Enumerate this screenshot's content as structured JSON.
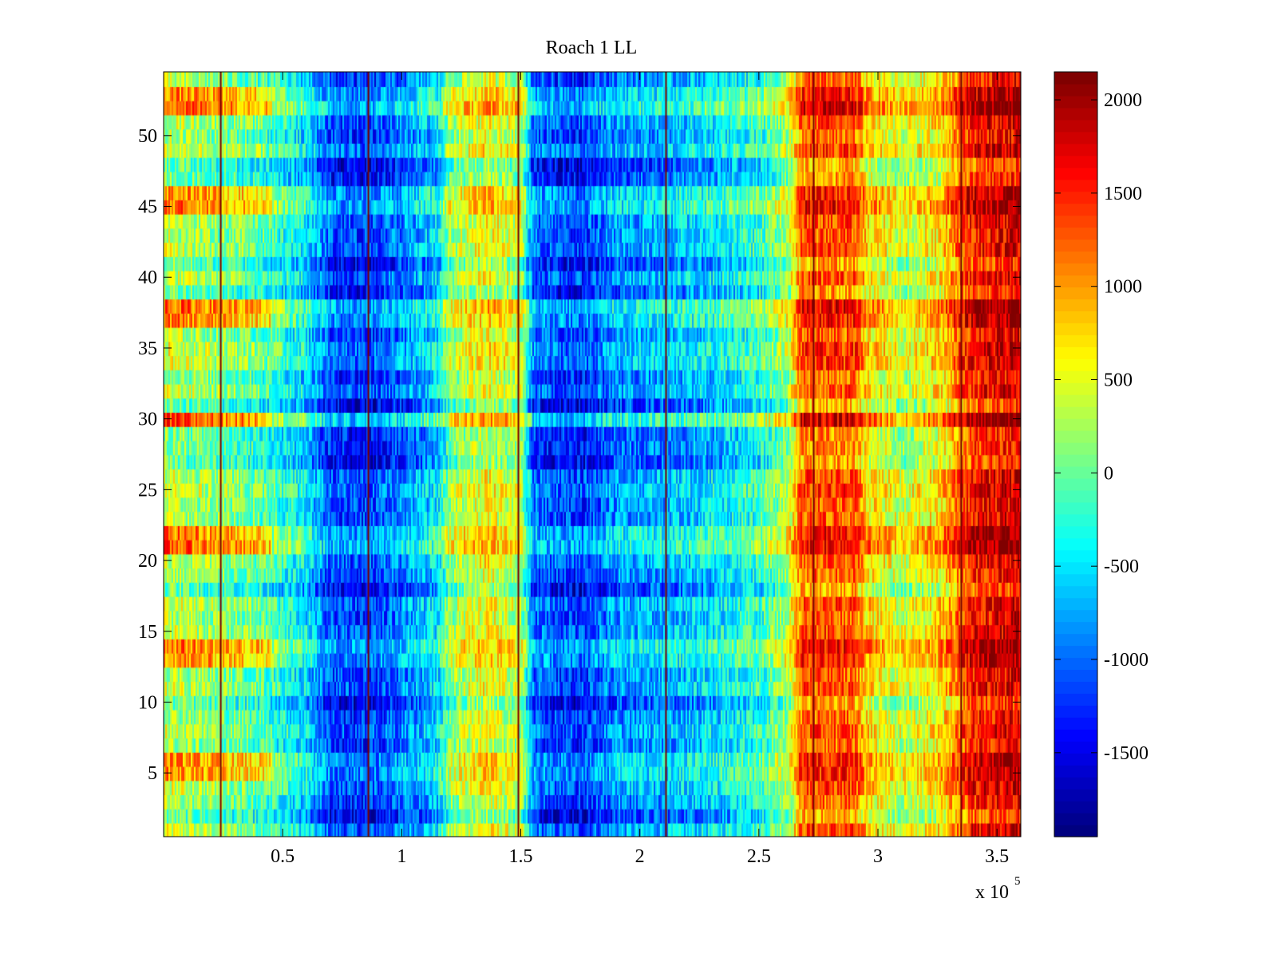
{
  "chart_data": {
    "type": "heatmap",
    "title": "Roach 1 LL",
    "xlabel": "",
    "ylabel": "",
    "x_exponent_label": "x 10",
    "x_exponent": "5",
    "xlim": [
      0,
      3.6
    ],
    "ylim": [
      0.5,
      54.5
    ],
    "x_ticks": [
      0.5,
      1,
      1.5,
      2,
      2.5,
      3,
      3.5
    ],
    "x_tick_labels": [
      "0.5",
      "1",
      "1.5",
      "2",
      "2.5",
      "3",
      "3.5"
    ],
    "y_ticks": [
      5,
      10,
      15,
      20,
      25,
      30,
      35,
      40,
      45,
      50
    ],
    "y_tick_labels": [
      "5",
      "10",
      "15",
      "20",
      "25",
      "30",
      "35",
      "40",
      "45",
      "50"
    ],
    "rows": 54,
    "colorbar": {
      "colormap": "jet",
      "clim": [
        -1950,
        2150
      ],
      "ticks": [
        2000,
        1500,
        1000,
        500,
        0,
        -500,
        -1000,
        -1500
      ],
      "tick_labels": [
        "2000",
        "1500",
        "1000",
        "500",
        "0",
        "-500",
        "-1000",
        "-1500"
      ]
    },
    "column_profile": [
      {
        "x": 0.0,
        "value": 400
      },
      {
        "x": 0.2,
        "value": 200
      },
      {
        "x": 0.4,
        "value": 0
      },
      {
        "x": 0.6,
        "value": -500
      },
      {
        "x": 0.7,
        "value": -1100
      },
      {
        "x": 0.85,
        "value": -1200
      },
      {
        "x": 1.0,
        "value": -900
      },
      {
        "x": 1.15,
        "value": -500
      },
      {
        "x": 1.2,
        "value": 200
      },
      {
        "x": 1.35,
        "value": 600
      },
      {
        "x": 1.5,
        "value": 300
      },
      {
        "x": 1.55,
        "value": -1000
      },
      {
        "x": 1.75,
        "value": -1200
      },
      {
        "x": 1.9,
        "value": -800
      },
      {
        "x": 2.1,
        "value": -700
      },
      {
        "x": 2.3,
        "value": -500
      },
      {
        "x": 2.5,
        "value": -200
      },
      {
        "x": 2.62,
        "value": 300
      },
      {
        "x": 2.68,
        "value": 1300
      },
      {
        "x": 2.9,
        "value": 1300
      },
      {
        "x": 2.95,
        "value": 800
      },
      {
        "x": 3.1,
        "value": 400
      },
      {
        "x": 3.25,
        "value": 700
      },
      {
        "x": 3.33,
        "value": 1200
      },
      {
        "x": 3.4,
        "value": 1600
      },
      {
        "x": 3.6,
        "value": 1800
      }
    ],
    "row_modulation": {
      "high_rows": [
        5,
        6,
        13,
        14,
        21,
        22,
        30,
        37,
        38,
        45,
        46,
        52,
        53
      ],
      "low_rows": [
        2,
        3,
        10,
        18,
        27,
        28,
        29,
        31,
        33,
        39,
        41,
        47,
        48
      ]
    },
    "stripe_lines_x": [
      0.24,
      0.86,
      1.49,
      2.11,
      2.73,
      3.35
    ]
  }
}
